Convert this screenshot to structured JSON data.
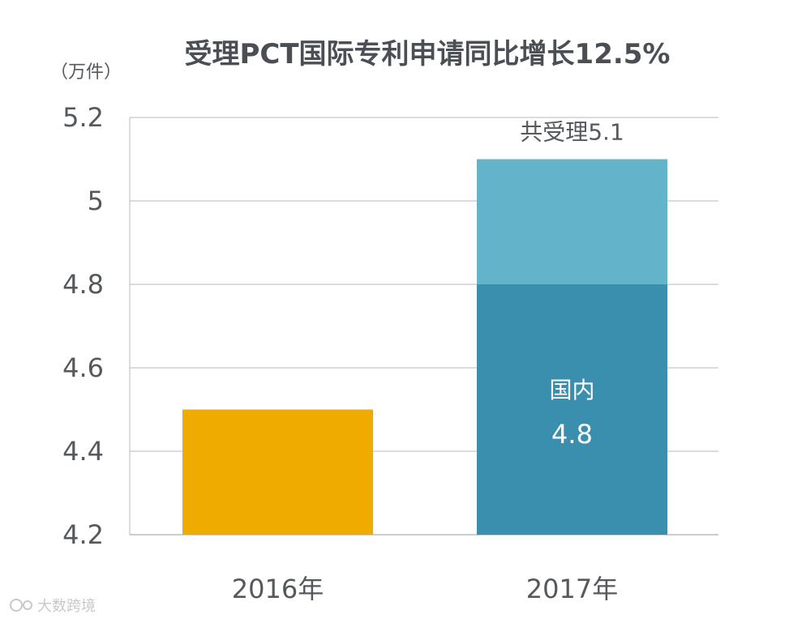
{
  "chart_data": {
    "type": "bar",
    "title": "受理PCT国际专利申请同比增长12.5%",
    "unit_label": "（万件）",
    "categories": [
      "2016年",
      "2017年"
    ],
    "ylim": [
      4.2,
      5.2
    ],
    "yticks": [
      "4.2",
      "4.4",
      "4.6",
      "4.8",
      "5",
      "5.2"
    ],
    "grid": true,
    "series": [
      {
        "values": [
          4.5,
          4.8
        ],
        "colors": [
          "#f0ab00",
          "#3a8fae"
        ]
      },
      {
        "values": [
          null,
          5.1
        ],
        "colors": [
          null,
          "#63b4cb"
        ]
      }
    ],
    "annotations": {
      "total_label": "共受理5.1",
      "domestic_label": "国内",
      "domestic_value": "4.8"
    }
  },
  "watermark": "大数跨境"
}
